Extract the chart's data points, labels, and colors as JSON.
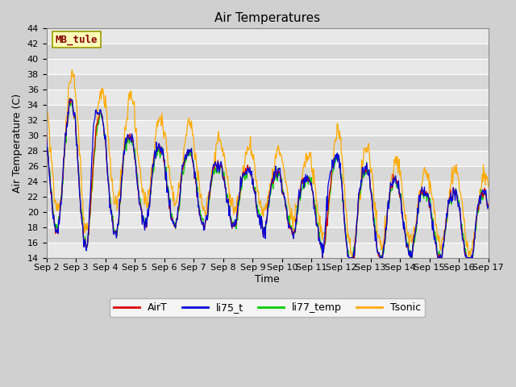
{
  "title": "Air Temperatures",
  "ylabel": "Air Temperature (C)",
  "xlabel": "Time",
  "ylim": [
    14,
    44
  ],
  "yticks": [
    14,
    16,
    18,
    20,
    22,
    24,
    26,
    28,
    30,
    32,
    34,
    36,
    38,
    40,
    42,
    44
  ],
  "plot_bg_light": "#dcdcdc",
  "plot_bg_dark": "#c8c8c8",
  "grid_color": "#ffffff",
  "series_colors": {
    "AirT": "#dd0000",
    "li75_t": "#0000dd",
    "li77_temp": "#00cc00",
    "Tsonic": "#ffaa00"
  },
  "annotation_text": "MB_tule",
  "annotation_bg": "#ffffbb",
  "annotation_border": "#999900",
  "annotation_text_color": "#880000",
  "x_tick_labels": [
    "Sep 2",
    "Sep 3",
    "Sep 4",
    "Sep 5",
    "Sep 6",
    "Sep 7",
    "Sep 8",
    "Sep 9",
    "Sep 10",
    "Sep 11",
    "Sep 12",
    "Sep 13",
    "Sep 14",
    "Sep 15",
    "Sep 16",
    "Sep 17"
  ],
  "title_fontsize": 11,
  "axis_label_fontsize": 9,
  "tick_fontsize": 8,
  "legend_fontsize": 9,
  "figsize": [
    6.4,
    4.8
  ],
  "dpi": 100
}
